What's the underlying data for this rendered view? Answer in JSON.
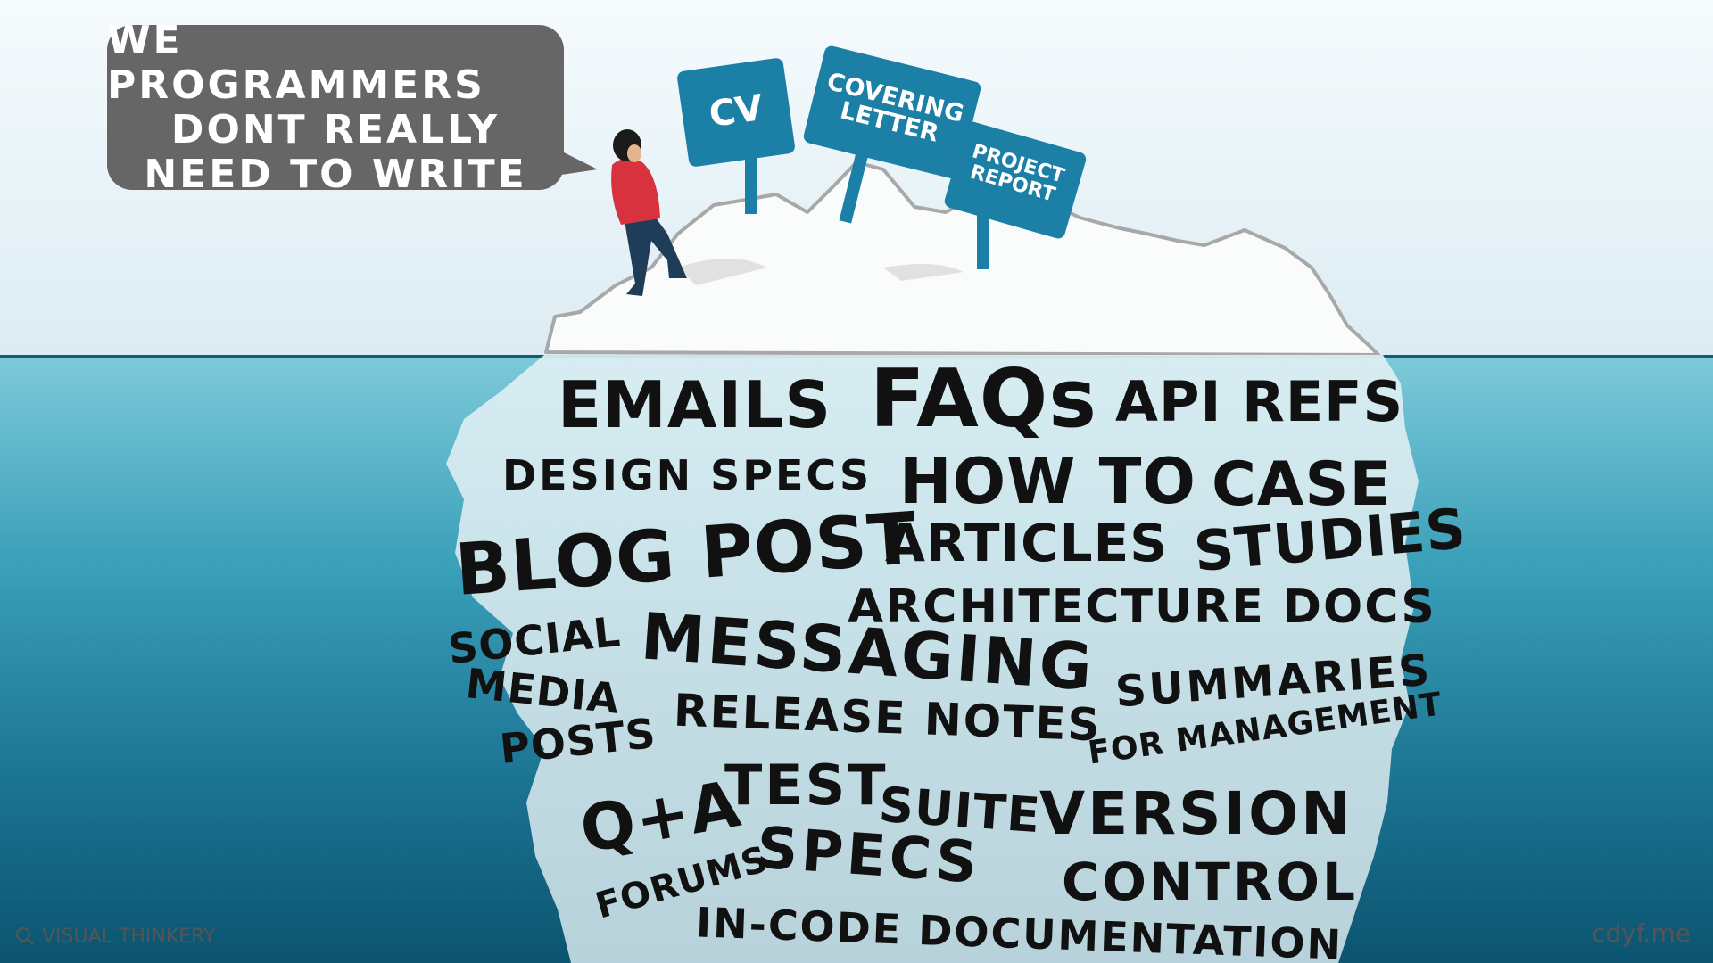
{
  "speech_bubble": {
    "lines": [
      "WE PROGRAMMERS",
      "DONT REALLY",
      "NEED TO WRITE"
    ]
  },
  "signs": {
    "cv": [
      "CV"
    ],
    "covering_letter": [
      "COVERING",
      "LETTER"
    ],
    "project_report": [
      "PROJECT",
      "REPORT"
    ]
  },
  "underwater_words": {
    "emails": "EMAILS",
    "faqs": "FAQs",
    "api_refs": "API REFS",
    "design_specs": "DESIGN SPECS",
    "how_to": "HOW TO",
    "case": "CASE",
    "blog_post": "BLOG POST",
    "articles": "ARTICLES",
    "studies": "STUDIES",
    "architecture_docs": "ARCHITECTURE DOCS",
    "social": "SOCIAL",
    "messaging": "MESSAGING",
    "media": "MEDIA",
    "summaries": "SUMMARIES",
    "posts": "POSTS",
    "release_notes": "RELEASE NOTES",
    "for_management": "FOR MANAGEMENT",
    "qa": "Q+A",
    "test": "TEST",
    "suite": "SUITE",
    "version": "VERSION",
    "forums": "FORUMS",
    "specs": "SPECS",
    "control": "CONTROL",
    "in_code_documentation": "IN-CODE DOCUMENTATION"
  },
  "credits": {
    "left": "VISUAL THINKERY",
    "right": "cdyf.me"
  },
  "colors": {
    "sky": "#eaf4f8",
    "water_top": "#6cc3d5",
    "water_bottom": "#0f5f7c",
    "sign": "#1c7fa6",
    "bubble": "#666666",
    "iceberg": "#f7f8f8",
    "person_shirt": "#d8323f",
    "person_pants": "#1f3c58"
  },
  "icons": {
    "credit_logo": "magnifier-icon"
  }
}
